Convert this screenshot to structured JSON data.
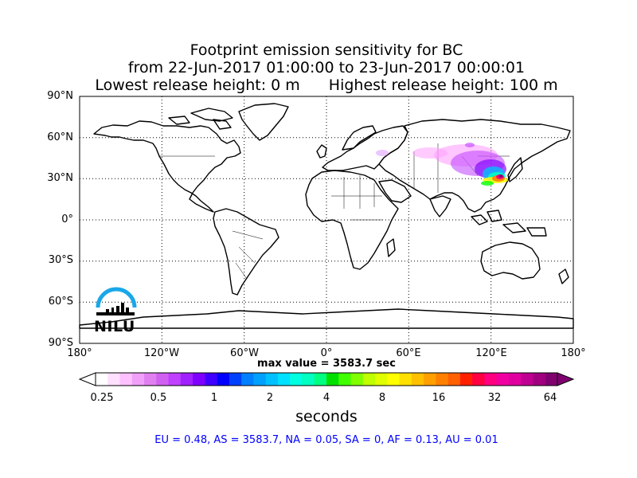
{
  "title": {
    "line1": "Footprint emission sensitivity for BC",
    "line2": "from 22-Jun-2017 01:00:00 to 23-Jun-2017 00:00:01",
    "line3_left": "Lowest release height: 0 m",
    "line3_right": "Highest release height: 100 m"
  },
  "map": {
    "lat_ticks": [
      "90°N",
      "60°N",
      "30°N",
      "0°",
      "30°S",
      "60°S",
      "90°S"
    ],
    "lon_ticks": [
      "180°",
      "120°W",
      "60°W",
      "0°",
      "60°E",
      "120°E",
      "180°"
    ],
    "grid": true,
    "plume_colors": [
      "#ff80ff",
      "#c040ff",
      "#8000ff",
      "#00c0ff",
      "#00ffc0",
      "#00ff00",
      "#ffff00",
      "#ff8000",
      "#ff0080",
      "#800080"
    ]
  },
  "max_value_label": "max value = 3583.7 sec",
  "colorbar": {
    "ticks": [
      "0.25",
      "0.5",
      "1",
      "2",
      "4",
      "8",
      "16",
      "32",
      "64"
    ],
    "units": "seconds",
    "colors": [
      "#ffffff",
      "#ffe0ff",
      "#ffc0ff",
      "#f0a0f8",
      "#e080f0",
      "#d060f0",
      "#c040ff",
      "#a020ff",
      "#8000ff",
      "#4000ff",
      "#0000ff",
      "#0040ff",
      "#0080ff",
      "#00a0ff",
      "#00c0ff",
      "#00e0ff",
      "#00ffe0",
      "#00ffc0",
      "#00ff80",
      "#00e000",
      "#40ff00",
      "#80ff00",
      "#c0ff00",
      "#e0ff00",
      "#ffff00",
      "#ffe000",
      "#ffc000",
      "#ffa000",
      "#ff8000",
      "#ff6000",
      "#ff2000",
      "#ff0040",
      "#ff0080",
      "#f000a0",
      "#e000a0",
      "#c00090",
      "#a00080",
      "#800070"
    ]
  },
  "region_summary": "EU = 0.48,  AS = 3583.7,  NA = 0.05,  SA = 0,  AF = 0.13,  AU = 0.01",
  "logo": {
    "text": "NILU",
    "arc_color": "#1aa7e8"
  }
}
